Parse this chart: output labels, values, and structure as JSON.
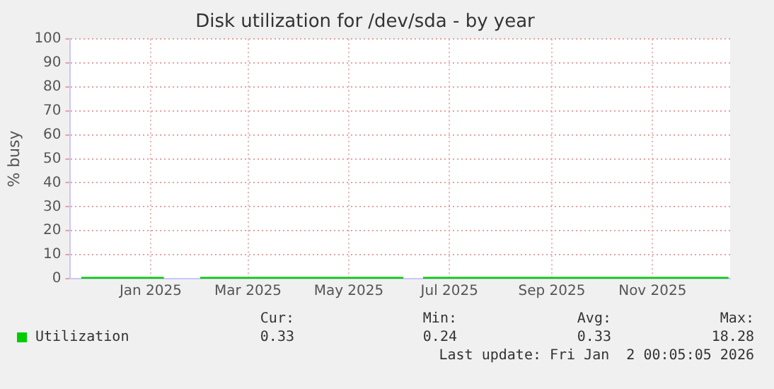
{
  "chart_data": {
    "type": "line",
    "title": "Disk utilization for /dev/sda - by year",
    "ylabel": "% busy",
    "x": [
      "2024-12-05",
      "2024-12-15",
      "2024-12-25",
      "2025-01-04",
      "2025-01-14",
      "2025-01-24",
      "2025-02-01",
      "2025-02-08",
      "2025-02-15",
      "2025-02-22",
      "2025-03-01",
      "2025-03-10",
      "2025-03-20",
      "2025-03-30",
      "2025-04-09",
      "2025-04-19",
      "2025-04-29",
      "2025-05-09",
      "2025-05-19",
      "2025-05-29",
      "2025-06-08",
      "2025-06-18",
      "2025-06-24",
      "2025-06-30",
      "2025-07-10",
      "2025-07-20",
      "2025-07-30",
      "2025-08-09",
      "2025-08-19",
      "2025-08-29",
      "2025-09-08",
      "2025-09-18",
      "2025-09-28",
      "2025-10-08",
      "2025-10-18",
      "2025-10-28",
      "2025-11-07",
      "2025-11-17",
      "2025-11-27",
      "2025-12-07",
      "2025-12-17",
      "2025-12-27",
      "2026-01-01"
    ],
    "series": [
      {
        "name": "Utilization",
        "color": "#00cc00",
        "values": [
          0.3,
          0.3,
          0.3,
          0.3,
          0.3,
          0.3,
          null,
          null,
          0.3,
          0.3,
          0.3,
          0.3,
          0.3,
          0.3,
          0.3,
          0.3,
          0.3,
          0.3,
          0.3,
          0.3,
          0.3,
          0.3,
          null,
          0.3,
          0.3,
          0.3,
          0.3,
          0.3,
          0.3,
          0.3,
          0.3,
          0.3,
          0.3,
          0.3,
          0.3,
          0.3,
          0.3,
          0.3,
          0.3,
          0.3,
          0.3,
          0.3,
          0.3
        ]
      }
    ],
    "xlim": [
      "2024-11-28",
      "2026-01-02"
    ],
    "xticks": [
      {
        "value": "2025-01-16",
        "label": "Jan 2025"
      },
      {
        "value": "2025-03-16",
        "label": "Mar 2025"
      },
      {
        "value": "2025-05-16",
        "label": "May 2025"
      },
      {
        "value": "2025-07-16",
        "label": "Jul 2025"
      },
      {
        "value": "2025-09-16",
        "label": "Sep 2025"
      },
      {
        "value": "2025-11-16",
        "label": "Nov 2025"
      }
    ],
    "ylim": [
      0,
      100
    ],
    "yticks": [
      0,
      10,
      20,
      30,
      40,
      50,
      60,
      70,
      80,
      90,
      100
    ],
    "grid": true,
    "legend": "bottom left",
    "marker": "none",
    "line_style": "solid",
    "annotations": [
      "Cur:",
      "Min:",
      "Avg:",
      "Max:",
      "0.33",
      "0.24",
      "0.33",
      "18.28",
      "Last update: Fri Jan  2 00:05:05 2026"
    ]
  }
}
